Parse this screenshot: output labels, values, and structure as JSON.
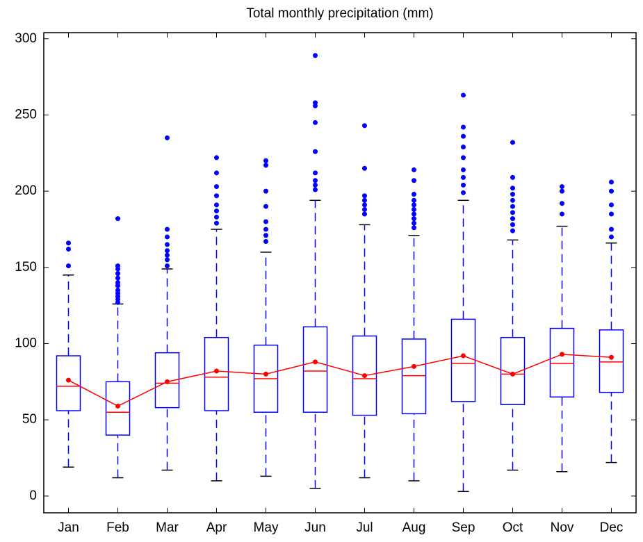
{
  "chart_data": {
    "type": "box",
    "title": "Total monthly precipitation (mm)",
    "categories": [
      "Jan",
      "Feb",
      "Mar",
      "Apr",
      "May",
      "Jun",
      "Jul",
      "Aug",
      "Sep",
      "Oct",
      "Nov",
      "Dec"
    ],
    "min": [
      19,
      12,
      17,
      10,
      13,
      5,
      12,
      10,
      3,
      17,
      16,
      22
    ],
    "q1": [
      56,
      40,
      58,
      56,
      55,
      55,
      53,
      54,
      62,
      60,
      65,
      68
    ],
    "median": [
      72,
      55,
      74,
      78,
      77,
      82,
      77,
      79,
      87,
      80,
      87,
      88
    ],
    "q3": [
      92,
      75,
      94,
      104,
      99,
      111,
      105,
      103,
      116,
      104,
      110,
      109
    ],
    "max": [
      145,
      126,
      149,
      175,
      160,
      194,
      178,
      171,
      194,
      168,
      177,
      166
    ],
    "mean": [
      76,
      59,
      75,
      82,
      80,
      88,
      79,
      85,
      92,
      80,
      93,
      91
    ],
    "outliers": [
      [
        151,
        162,
        166
      ],
      [
        127,
        129,
        131,
        133,
        135,
        138,
        140,
        143,
        146,
        149,
        151,
        182
      ],
      [
        151,
        155,
        158,
        161,
        165,
        170,
        175,
        235
      ],
      [
        179,
        183,
        187,
        191,
        197,
        203,
        212,
        222
      ],
      [
        167,
        171,
        175,
        180,
        190,
        200,
        217,
        220
      ],
      [
        201,
        204,
        207,
        212,
        226,
        245,
        256,
        258,
        289
      ],
      [
        185,
        188,
        191,
        194,
        197,
        215,
        243
      ],
      [
        176,
        179,
        182,
        185,
        188,
        191,
        194,
        198,
        207,
        214
      ],
      [
        199,
        204,
        209,
        214,
        222,
        229,
        236,
        242,
        263
      ],
      [
        174,
        178,
        182,
        186,
        190,
        194,
        198,
        202,
        209,
        232
      ],
      [
        185,
        192,
        200,
        203
      ],
      [
        170,
        175,
        185,
        191,
        200,
        206
      ]
    ],
    "box_color": "#0000ff",
    "median_color": "#ff0000",
    "mean_color": "#ff0000",
    "cap_color": "#000000",
    "ylim": [
      -11,
      304
    ],
    "yticks": [
      0,
      50,
      100,
      150,
      200,
      250,
      300
    ]
  }
}
